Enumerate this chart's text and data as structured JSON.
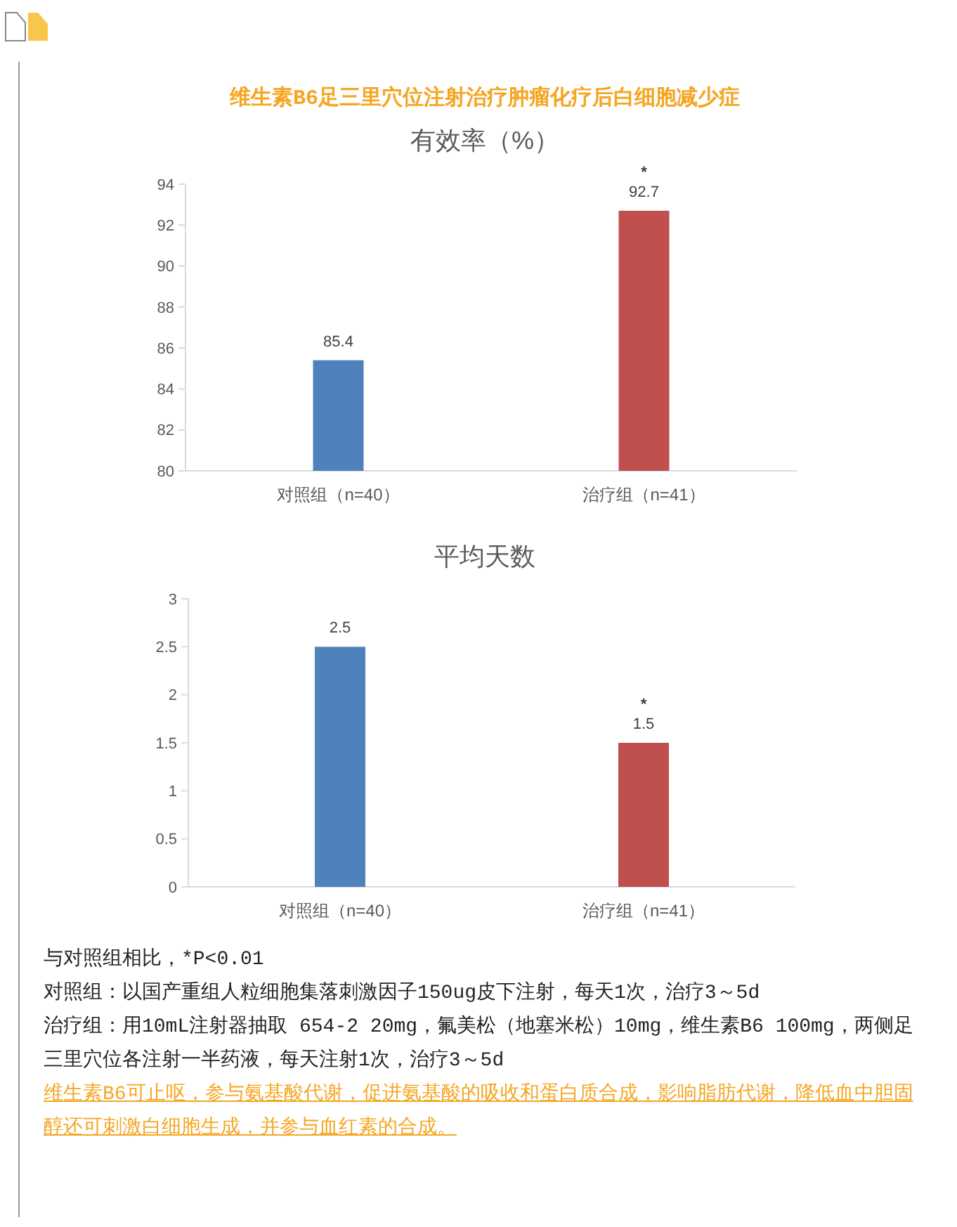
{
  "chart_data": [
    {
      "type": "bar",
      "title": "维生素B6足三里穴位注射治疗肿瘤化疗后白细胞减少症",
      "subtitle": "有效率（%）",
      "categories": [
        "对照组（n=40）",
        "治疗组（n=41）"
      ],
      "values": [
        85.4,
        92.7
      ],
      "colors": [
        "#4f81bd",
        "#c0504d"
      ],
      "ylim": [
        80,
        94
      ],
      "yticks": [
        80,
        82,
        84,
        86,
        88,
        90,
        92,
        94
      ],
      "data_labels": true,
      "annotations": [
        {
          "text": "*",
          "x": "治疗组（n=41）",
          "y": 92.7
        }
      ]
    },
    {
      "type": "bar",
      "title": "平均天数",
      "categories": [
        "对照组（n=40）",
        "治疗组（n=41）"
      ],
      "values": [
        2.5,
        1.5
      ],
      "colors": [
        "#4f81bd",
        "#c0504d"
      ],
      "ylim": [
        0,
        3
      ],
      "yticks": [
        0,
        0.5,
        1,
        1.5,
        2,
        2.5,
        3
      ],
      "data_labels": true,
      "annotations": [
        {
          "text": "*",
          "x": "治疗组（n=41）",
          "y": 1.5
        },
        "与对照组相比，*P<0.01",
        "对照组：以国产重组人粒细胞集落刺激因子150ug皮下注射，每天1次，治疗3～5d",
        "治疗组：用10mL注射器抽取 654-2 20mg，氟美松（地塞米松）10mg，维生素B6 100mg，两侧足三里穴位各注射一半药液，每天注射1次，治疗3～5d",
        "维生素B6可止呕，参与氨基酸代谢，促进氨基酸的吸收和蛋白质合成，影响脂肪代谢，降低血中胆固醇还可刺激白细胞生成，并参与血红素的合成。"
      ]
    }
  ]
}
